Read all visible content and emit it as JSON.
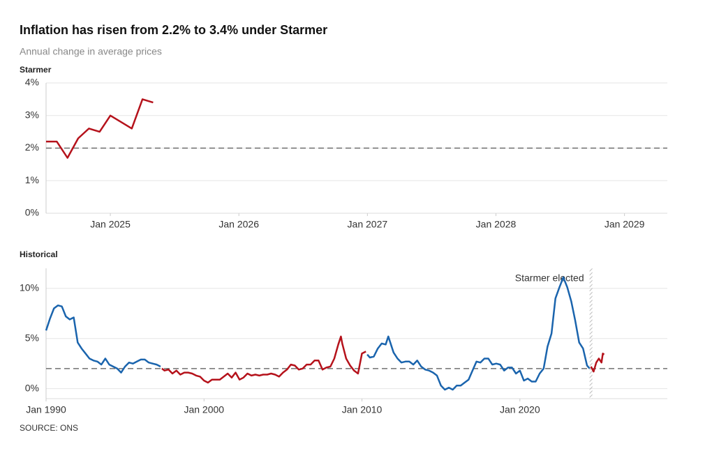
{
  "title": "Inflation has risen from 2.2% to 3.4% under Starmer",
  "subtitle": "Annual change in average prices",
  "source": "SOURCE: ONS",
  "chart_data": [
    {
      "type": "line",
      "title": "Starmer",
      "color": "#b5121b",
      "x": [
        "2024-07",
        "2024-08",
        "2024-09",
        "2024-10",
        "2024-11",
        "2024-12",
        "2025-01",
        "2025-02",
        "2025-03",
        "2025-04",
        "2025-05"
      ],
      "values": [
        2.2,
        2.2,
        1.7,
        2.3,
        2.6,
        2.5,
        3.0,
        2.8,
        2.6,
        3.5,
        3.4
      ],
      "xlim": [
        "2024-07",
        "2029-05"
      ],
      "xticks": [
        {
          "value": "2025-01",
          "label": "Jan 2025"
        },
        {
          "value": "2026-01",
          "label": "Jan 2026"
        },
        {
          "value": "2027-01",
          "label": "Jan 2027"
        },
        {
          "value": "2028-01",
          "label": "Jan 2028"
        },
        {
          "value": "2029-01",
          "label": "Jan 2029"
        }
      ],
      "ylim": [
        0,
        4
      ],
      "yticks": [
        {
          "value": 0,
          "label": "0%"
        },
        {
          "value": 1,
          "label": "1%"
        },
        {
          "value": 2,
          "label": "2%"
        },
        {
          "value": 3,
          "label": "3%"
        },
        {
          "value": 4,
          "label": "4%"
        }
      ],
      "reference_line": 2,
      "grid": true
    },
    {
      "type": "line",
      "title": "Historical",
      "series": [
        {
          "color": "#1a64ad",
          "x": [
            "1990-01",
            "1990-04",
            "1990-07",
            "1990-10",
            "1991-01",
            "1991-04",
            "1991-07",
            "1991-10",
            "1992-01",
            "1992-04",
            "1992-07",
            "1992-10",
            "1993-01",
            "1993-04",
            "1993-07",
            "1993-10",
            "1994-01",
            "1994-04",
            "1994-07",
            "1994-10",
            "1995-01",
            "1995-04",
            "1995-07",
            "1995-10",
            "1996-01",
            "1996-04",
            "1996-07",
            "1996-10",
            "1997-01",
            "1997-04"
          ],
          "values": [
            5.8,
            7.0,
            8.0,
            8.3,
            8.2,
            7.2,
            6.9,
            7.1,
            4.6,
            4.0,
            3.5,
            3.0,
            2.8,
            2.7,
            2.4,
            3.0,
            2.4,
            2.2,
            2.0,
            1.6,
            2.2,
            2.6,
            2.5,
            2.7,
            2.9,
            2.9,
            2.6,
            2.5,
            2.4,
            2.2
          ]
        },
        {
          "color": "#b5121b",
          "x": [
            "1997-05",
            "1997-07",
            "1997-10",
            "1998-01",
            "1998-04",
            "1998-07",
            "1998-10",
            "1999-01",
            "1999-04",
            "1999-07",
            "1999-10",
            "2000-01",
            "2000-04",
            "2000-07",
            "2000-10",
            "2001-01",
            "2001-04",
            "2001-07",
            "2001-10",
            "2002-01",
            "2002-04",
            "2002-07",
            "2002-10",
            "2003-01",
            "2003-04",
            "2003-07",
            "2003-10",
            "2004-01",
            "2004-04",
            "2004-07",
            "2004-10",
            "2005-01",
            "2005-04",
            "2005-07",
            "2005-10",
            "2006-01",
            "2006-04",
            "2006-07",
            "2006-10",
            "2007-01",
            "2007-04",
            "2007-07",
            "2007-10",
            "2008-01",
            "2008-04",
            "2008-07",
            "2008-09",
            "2008-10",
            "2009-01",
            "2009-04",
            "2009-07",
            "2009-10",
            "2010-01",
            "2010-04"
          ],
          "values": [
            2.0,
            1.8,
            1.9,
            1.5,
            1.8,
            1.4,
            1.6,
            1.6,
            1.5,
            1.3,
            1.2,
            0.8,
            0.6,
            0.9,
            0.9,
            0.9,
            1.2,
            1.5,
            1.1,
            1.6,
            0.9,
            1.1,
            1.5,
            1.3,
            1.4,
            1.3,
            1.4,
            1.4,
            1.5,
            1.4,
            1.2,
            1.6,
            1.9,
            2.4,
            2.3,
            1.9,
            2.0,
            2.4,
            2.4,
            2.8,
            2.8,
            1.9,
            2.1,
            2.2,
            3.0,
            4.4,
            5.2,
            4.5,
            3.0,
            2.3,
            1.8,
            1.5,
            3.5,
            3.7
          ]
        },
        {
          "color": "#1a64ad",
          "x": [
            "2010-05",
            "2010-07",
            "2010-10",
            "2011-01",
            "2011-04",
            "2011-07",
            "2011-09",
            "2012-01",
            "2012-04",
            "2012-07",
            "2012-10",
            "2013-01",
            "2013-04",
            "2013-07",
            "2013-10",
            "2014-01",
            "2014-04",
            "2014-07",
            "2014-10",
            "2015-01",
            "2015-04",
            "2015-07",
            "2015-10",
            "2016-01",
            "2016-04",
            "2016-07",
            "2016-10",
            "2017-01",
            "2017-04",
            "2017-07",
            "2017-10",
            "2018-01",
            "2018-04",
            "2018-07",
            "2018-10",
            "2019-01",
            "2019-04",
            "2019-07",
            "2019-10",
            "2020-01",
            "2020-04",
            "2020-07",
            "2020-10",
            "2021-01",
            "2021-04",
            "2021-07",
            "2021-10",
            "2022-01",
            "2022-04",
            "2022-07",
            "2022-10",
            "2023-01",
            "2023-04",
            "2023-07",
            "2023-10",
            "2024-01",
            "2024-04",
            "2024-06"
          ],
          "values": [
            3.4,
            3.1,
            3.2,
            4.0,
            4.5,
            4.4,
            5.2,
            3.6,
            3.0,
            2.6,
            2.7,
            2.7,
            2.4,
            2.8,
            2.2,
            1.9,
            1.8,
            1.6,
            1.3,
            0.3,
            -0.1,
            0.1,
            -0.1,
            0.3,
            0.3,
            0.6,
            0.9,
            1.8,
            2.7,
            2.6,
            3.0,
            3.0,
            2.4,
            2.5,
            2.4,
            1.8,
            2.1,
            2.1,
            1.5,
            1.8,
            0.8,
            1.0,
            0.7,
            0.7,
            1.5,
            2.0,
            4.2,
            5.5,
            9.0,
            10.1,
            11.1,
            10.1,
            8.7,
            6.8,
            4.6,
            4.0,
            2.3,
            2.0
          ]
        },
        {
          "color": "#b5121b",
          "x": [
            "2024-07",
            "2024-09",
            "2024-11",
            "2025-01",
            "2025-03",
            "2025-04",
            "2025-05"
          ],
          "values": [
            2.2,
            1.7,
            2.6,
            3.0,
            2.6,
            3.5,
            3.4
          ]
        }
      ],
      "xlim": [
        "1990-01",
        "2029-05"
      ],
      "xticks": [
        {
          "value": "1990-01",
          "label": "Jan 1990"
        },
        {
          "value": "2000-01",
          "label": "Jan 2000"
        },
        {
          "value": "2010-01",
          "label": "Jan 2010"
        },
        {
          "value": "2020-01",
          "label": "Jan 2020"
        }
      ],
      "ylim": [
        -1,
        12
      ],
      "yticks": [
        {
          "value": 0,
          "label": "0%"
        },
        {
          "value": 5,
          "label": "5%"
        },
        {
          "value": 10,
          "label": "10%"
        }
      ],
      "reference_line": 2,
      "grid": true,
      "annotations": [
        {
          "text": "Starmer elected",
          "x": "2024-07"
        }
      ]
    }
  ]
}
